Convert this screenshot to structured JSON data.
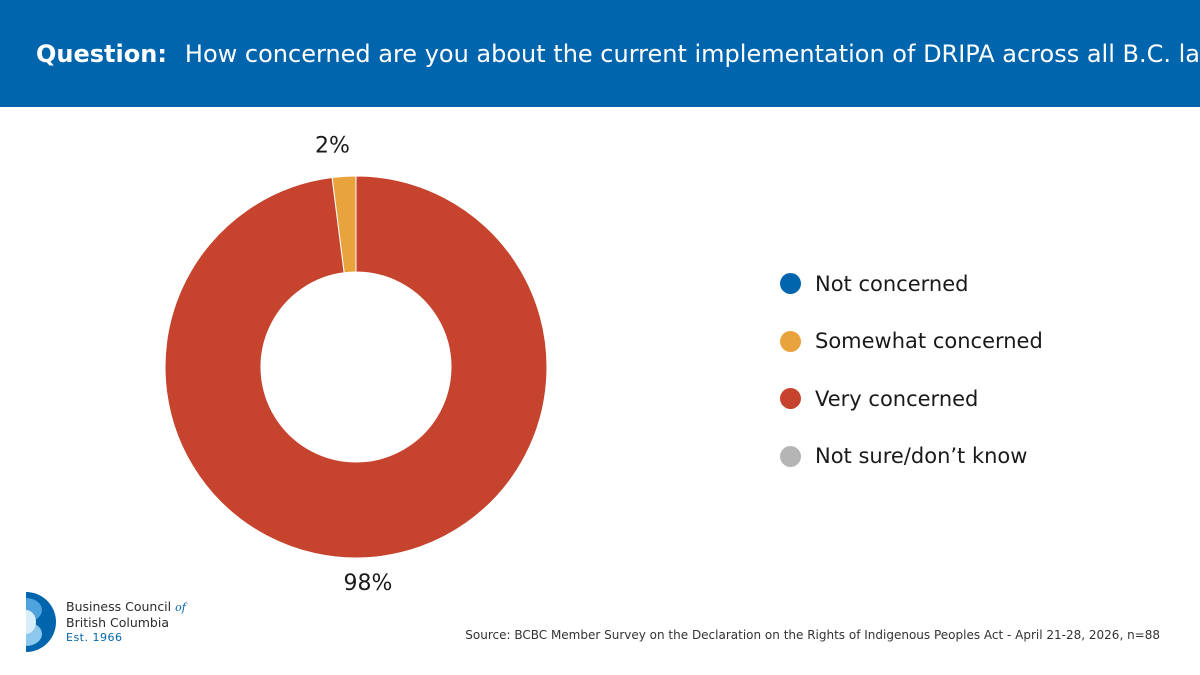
{
  "header": {
    "question_label": "Question:",
    "question_text": "How concerned are you about the current implementation of DRIPA across all B.C. laws?"
  },
  "chart_data": {
    "type": "pie",
    "donut": true,
    "title": "",
    "slices": [
      {
        "label": "Not concerned",
        "value": 0,
        "color": "#0065ad"
      },
      {
        "label": "Somewhat concerned",
        "value": 2,
        "color": "#e8a33d"
      },
      {
        "label": "Very concerned",
        "value": 98,
        "color": "#c6432d"
      },
      {
        "label": "Not sure/don’t know",
        "value": 0,
        "color": "#b5b5b5"
      }
    ],
    "data_labels": [
      "2%",
      "98%"
    ],
    "legend_position": "right"
  },
  "legend": {
    "items": [
      {
        "label": "Not concerned",
        "color": "#0065ad"
      },
      {
        "label": "Somewhat concerned",
        "color": "#e8a33d"
      },
      {
        "label": "Very concerned",
        "color": "#c6432d"
      },
      {
        "label": "Not sure/don’t know",
        "color": "#b5b5b5"
      }
    ]
  },
  "logo": {
    "line1": "Business Council",
    "of": "of",
    "line2": "British Columbia",
    "est": "Est. 1966"
  },
  "footer": {
    "source": "Source: BCBC Member Survey on the Declaration on the Rights of Indigenous Peoples Act - April 21-28, 2026, n=88"
  }
}
